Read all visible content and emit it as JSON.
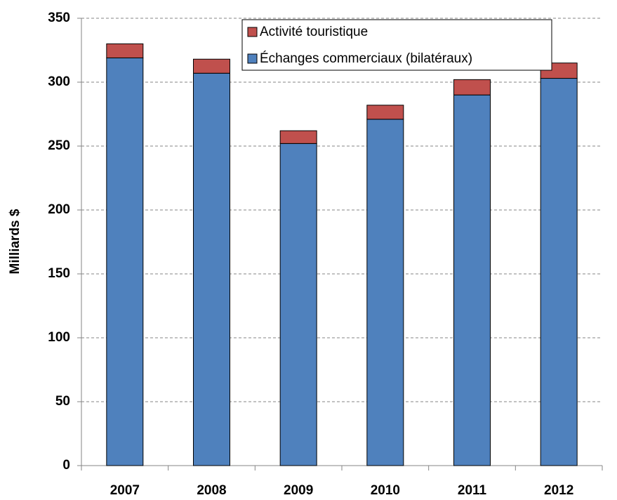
{
  "chart_data": {
    "type": "stacked_bar",
    "y_label": "Milliards $",
    "categories": [
      "2007",
      "2008",
      "2009",
      "2010",
      "2011",
      "2012"
    ],
    "series": [
      {
        "name": "Échanges commerciaux (bilatéraux)",
        "color": "#4f81bd",
        "values": [
          319,
          307,
          252,
          271,
          290,
          303
        ]
      },
      {
        "name": "Activité touristique",
        "color": "#c0504d",
        "values": [
          11,
          11,
          10,
          11,
          12,
          12
        ]
      }
    ],
    "ylim": [
      0,
      350
    ],
    "yticks": [
      0,
      50,
      100,
      150,
      200,
      250,
      300,
      350
    ],
    "grid": true,
    "legend": "top"
  }
}
